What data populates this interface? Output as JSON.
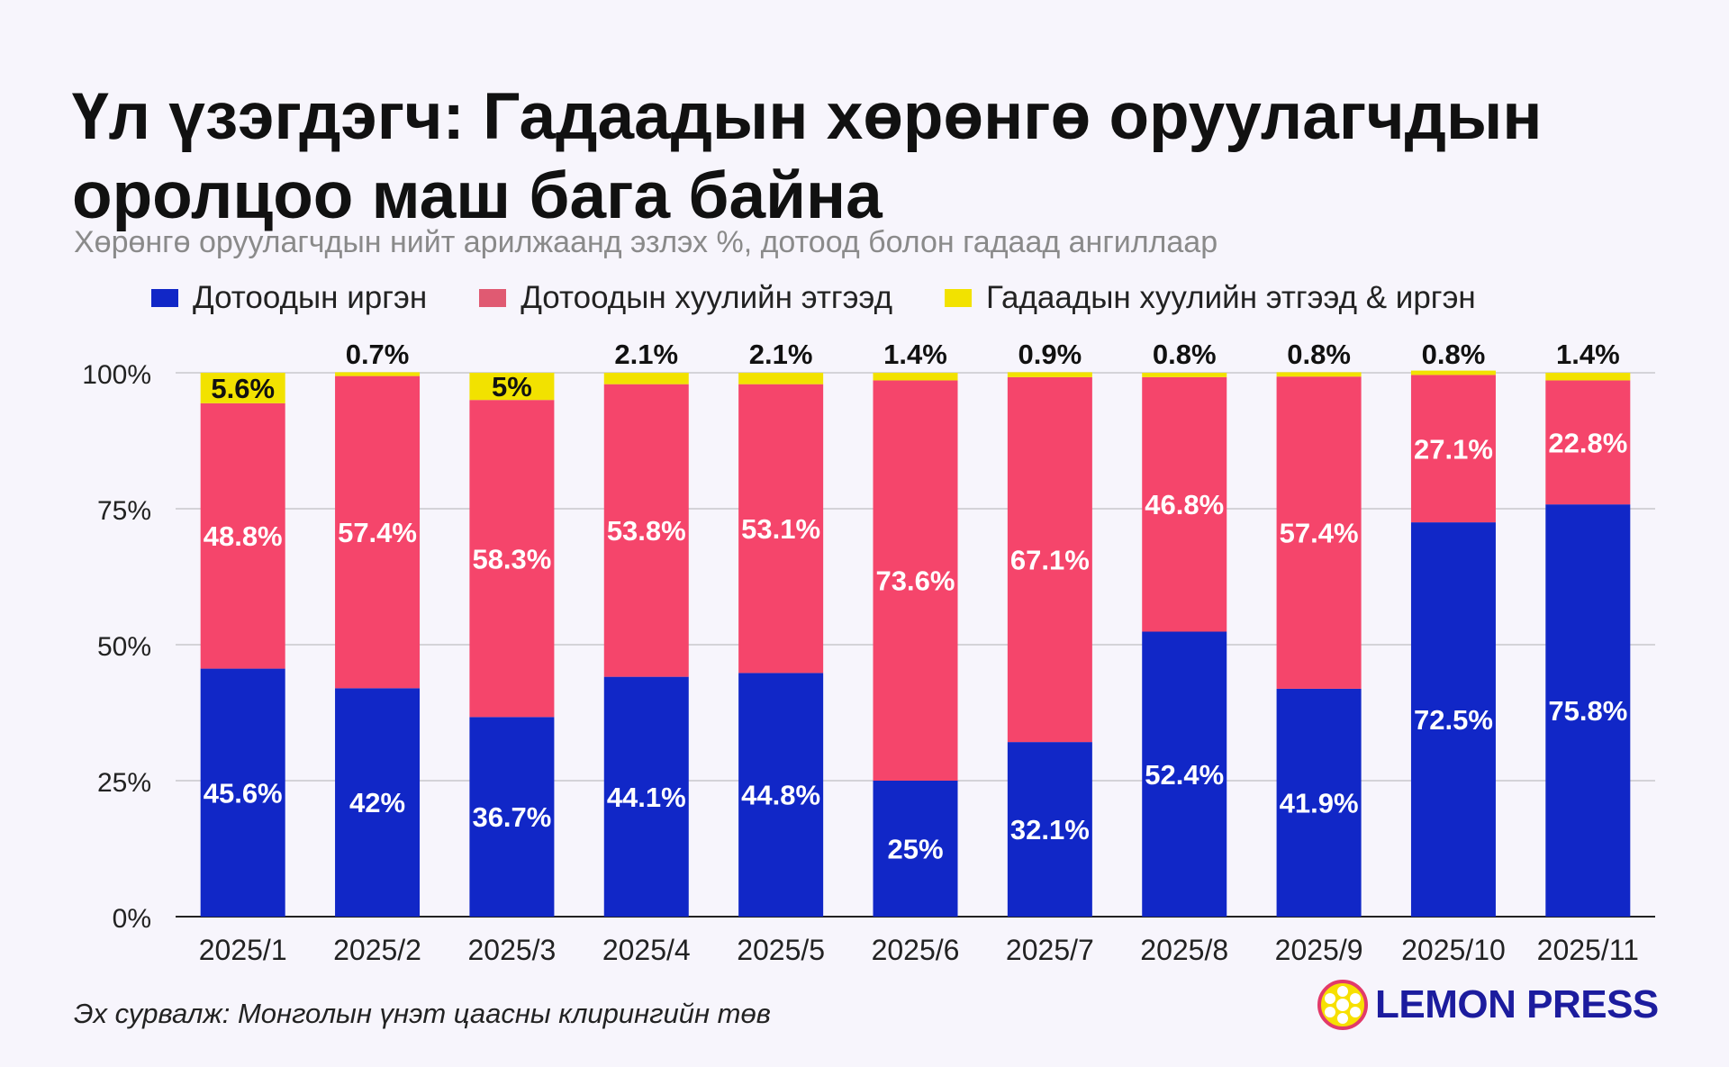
{
  "chart_data": {
    "type": "bar",
    "stacked": true,
    "title": "Үл үзэгдэгч: Гадаадын хөрөнгө оруулагчдын оролцоо маш бага байна",
    "subtitle": "Хөрөнгө оруулагчдын нийт арилжаанд эзлэх %, дотоод болон гадаад ангиллаар",
    "categories": [
      "2025/1",
      "2025/2",
      "2025/3",
      "2025/4",
      "2025/5",
      "2025/6",
      "2025/7",
      "2025/8",
      "2025/9",
      "2025/10",
      "2025/11"
    ],
    "series": [
      {
        "name": "Дотоодын иргэн",
        "color": "#1127c7",
        "values": [
          45.6,
          42,
          36.7,
          44.1,
          44.8,
          25,
          32.1,
          52.4,
          41.9,
          72.5,
          75.8
        ],
        "labels": [
          "45.6%",
          "42%",
          "36.7%",
          "44.1%",
          "44.8%",
          "25%",
          "32.1%",
          "52.4%",
          "41.9%",
          "72.5%",
          "75.8%"
        ]
      },
      {
        "name": "Дотоодын хуулийн этгээд",
        "color": "#f5456b",
        "values": [
          48.8,
          57.4,
          58.3,
          53.8,
          53.1,
          73.6,
          67.1,
          46.8,
          57.4,
          27.1,
          22.8
        ],
        "labels": [
          "48.8%",
          "57.4%",
          "58.3%",
          "53.8%",
          "53.1%",
          "73.6%",
          "67.1%",
          "46.8%",
          "57.4%",
          "27.1%",
          "22.8%"
        ]
      },
      {
        "name": "Гадаадын хуулийн этгээд & иргэн",
        "color": "#f2e200",
        "values": [
          5.6,
          0.7,
          5,
          2.1,
          2.1,
          1.4,
          0.9,
          0.8,
          0.8,
          0.8,
          1.4
        ],
        "labels": [
          "5.6%",
          "0.7%",
          "5%",
          "2.1%",
          "2.1%",
          "1.4%",
          "0.9%",
          "0.8%",
          "0.8%",
          "0.8%",
          "1.4%"
        ]
      }
    ],
    "legend_swatch_colors": [
      "#1127c7",
      "#e05a72",
      "#f2e200"
    ],
    "yticks": [
      "0%",
      "25%",
      "50%",
      "75%",
      "100%"
    ],
    "ylim": [
      0,
      100
    ],
    "xlabel": "",
    "ylabel": "",
    "grid": true,
    "legend_position": "top-left"
  },
  "footer": {
    "source": "Эх сурвалж: Монголын үнэт цаасны клирингийн төв",
    "logo_text": "LEMON PRESS"
  }
}
